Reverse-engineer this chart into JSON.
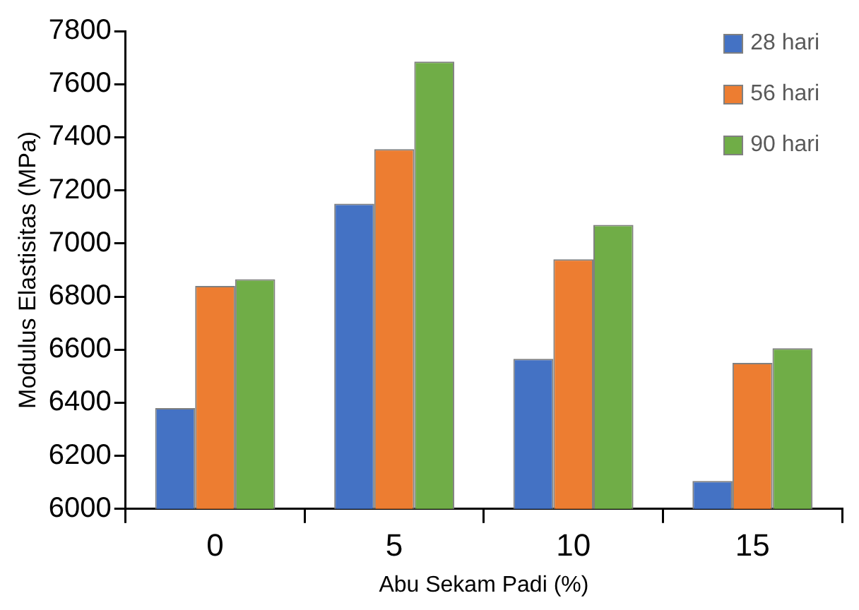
{
  "chart_data": {
    "type": "bar",
    "xlabel": "Abu Sekam Padi (%)",
    "ylabel": "Modulus Elastisitas (MPa)",
    "categories": [
      "0",
      "5",
      "10",
      "15"
    ],
    "series": [
      {
        "name": "28 hari",
        "color": "#4472c4",
        "values": [
          6380,
          7150,
          6565,
          6105
        ]
      },
      {
        "name": "56 hari",
        "color": "#ed7d31",
        "values": [
          6840,
          7355,
          6940,
          6550
        ]
      },
      {
        "name": "90 hari",
        "color": "#70ad47",
        "values": [
          6865,
          7685,
          7070,
          6605
        ]
      }
    ],
    "ylim": [
      6000,
      7800
    ],
    "yticks": [
      6000,
      6200,
      6400,
      6600,
      6800,
      7000,
      7200,
      7400,
      7600,
      7800
    ],
    "grid": false,
    "legend": "top right"
  }
}
